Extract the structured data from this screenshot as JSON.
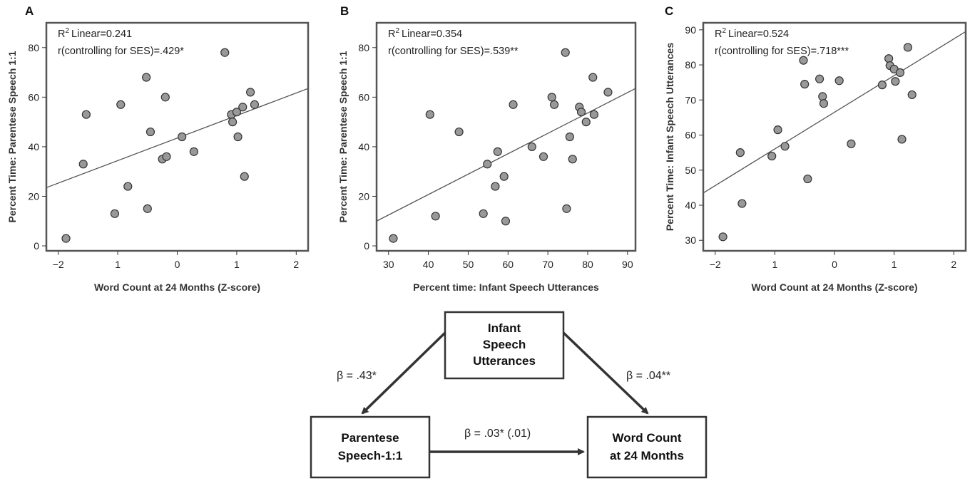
{
  "chart_data": [
    {
      "panel": "A",
      "type": "scatter",
      "xlabel": "Word Count at 24 Months (Z-score)",
      "ylabel": "Percent Time: Parentese Speech 1:1",
      "xlim": [
        -2.2,
        2.2
      ],
      "ylim": [
        -2,
        90
      ],
      "xticks": [
        -2,
        -1,
        0,
        1,
        2
      ],
      "xtick_labels": [
        "−2",
        "1",
        "0",
        "1",
        "2"
      ],
      "yticks": [
        0,
        20,
        40,
        60,
        80
      ],
      "annotations": [
        "Linear=0.241",
        "r(controlling for SES)=.429*"
      ],
      "annotation_prefix": "R",
      "annotation_sup": "2",
      "fit_line": {
        "x1": -2.2,
        "y1": 23.5,
        "x2": 2.2,
        "y2": 63.5
      },
      "points": [
        {
          "x": -1.87,
          "y": 3
        },
        {
          "x": -1.58,
          "y": 33
        },
        {
          "x": -1.53,
          "y": 53
        },
        {
          "x": -1.05,
          "y": 13
        },
        {
          "x": -0.95,
          "y": 57
        },
        {
          "x": -0.83,
          "y": 24
        },
        {
          "x": -0.52,
          "y": 68
        },
        {
          "x": -0.5,
          "y": 15
        },
        {
          "x": -0.45,
          "y": 46
        },
        {
          "x": -0.25,
          "y": 35
        },
        {
          "x": -0.2,
          "y": 60
        },
        {
          "x": -0.18,
          "y": 36
        },
        {
          "x": 0.08,
          "y": 44
        },
        {
          "x": 0.28,
          "y": 38
        },
        {
          "x": 0.8,
          "y": 78
        },
        {
          "x": 0.91,
          "y": 53
        },
        {
          "x": 0.93,
          "y": 50
        },
        {
          "x": 1.0,
          "y": 54
        },
        {
          "x": 1.02,
          "y": 44
        },
        {
          "x": 1.1,
          "y": 56
        },
        {
          "x": 1.13,
          "y": 28
        },
        {
          "x": 1.23,
          "y": 62
        },
        {
          "x": 1.3,
          "y": 57
        }
      ]
    },
    {
      "panel": "B",
      "type": "scatter",
      "xlabel": "Percent time: Infant Speech Utterances",
      "ylabel": "Percent Time: Parentese Speech 1:1",
      "xlim": [
        27,
        92
      ],
      "ylim": [
        -2,
        90
      ],
      "xticks": [
        30,
        40,
        50,
        60,
        70,
        80,
        90
      ],
      "xtick_labels": [
        "30",
        "40",
        "50",
        "60",
        "70",
        "80",
        "90"
      ],
      "yticks": [
        0,
        20,
        40,
        60,
        80
      ],
      "annotations": [
        "Linear=0.354",
        "r(controlling for SES)=.539**"
      ],
      "annotation_prefix": "R",
      "annotation_sup": "2",
      "fit_line": {
        "x1": 27,
        "y1": 10,
        "x2": 92,
        "y2": 63.5
      },
      "points": [
        {
          "x": 31.2,
          "y": 3
        },
        {
          "x": 40.4,
          "y": 53
        },
        {
          "x": 41.8,
          "y": 12
        },
        {
          "x": 47.7,
          "y": 46
        },
        {
          "x": 53.8,
          "y": 13
        },
        {
          "x": 54.8,
          "y": 33
        },
        {
          "x": 56.8,
          "y": 24
        },
        {
          "x": 57.4,
          "y": 38
        },
        {
          "x": 59.0,
          "y": 28
        },
        {
          "x": 59.4,
          "y": 10
        },
        {
          "x": 61.3,
          "y": 57
        },
        {
          "x": 66.0,
          "y": 40
        },
        {
          "x": 68.9,
          "y": 36
        },
        {
          "x": 71.0,
          "y": 60
        },
        {
          "x": 71.6,
          "y": 57
        },
        {
          "x": 74.4,
          "y": 78
        },
        {
          "x": 74.7,
          "y": 15
        },
        {
          "x": 75.5,
          "y": 44
        },
        {
          "x": 76.2,
          "y": 35
        },
        {
          "x": 77.9,
          "y": 56
        },
        {
          "x": 78.4,
          "y": 54
        },
        {
          "x": 79.6,
          "y": 50
        },
        {
          "x": 81.3,
          "y": 68
        },
        {
          "x": 81.6,
          "y": 53
        },
        {
          "x": 85.1,
          "y": 62
        }
      ]
    },
    {
      "panel": "C",
      "type": "scatter",
      "xlabel": "Word Count at 24 Months (Z-score)",
      "ylabel": "Percent Time: Infant Speech Utterances",
      "xlim": [
        -2.2,
        2.2
      ],
      "ylim": [
        27,
        92
      ],
      "xticks": [
        -2,
        -1,
        0,
        1,
        2
      ],
      "xtick_labels": [
        "−2",
        "1",
        "0",
        "1",
        "2"
      ],
      "yticks": [
        30,
        40,
        50,
        60,
        70,
        80,
        90
      ],
      "annotations": [
        "Linear=0.524",
        "r(controlling for SES)=.718***"
      ],
      "annotation_prefix": "R",
      "annotation_sup": "2",
      "fit_line": {
        "x1": -2.2,
        "y1": 43.5,
        "x2": 2.2,
        "y2": 89.5
      },
      "points": [
        {
          "x": -1.87,
          "y": 31
        },
        {
          "x": -1.58,
          "y": 55
        },
        {
          "x": -1.55,
          "y": 40.5
        },
        {
          "x": -1.05,
          "y": 54
        },
        {
          "x": -0.95,
          "y": 61.5
        },
        {
          "x": -0.83,
          "y": 56.8
        },
        {
          "x": -0.52,
          "y": 81.3
        },
        {
          "x": -0.5,
          "y": 74.5
        },
        {
          "x": -0.45,
          "y": 47.5
        },
        {
          "x": -0.25,
          "y": 76
        },
        {
          "x": -0.2,
          "y": 71
        },
        {
          "x": -0.18,
          "y": 69
        },
        {
          "x": 0.08,
          "y": 75.5
        },
        {
          "x": 0.28,
          "y": 57.5
        },
        {
          "x": 0.8,
          "y": 74.3
        },
        {
          "x": 0.91,
          "y": 81.8
        },
        {
          "x": 0.93,
          "y": 79.8
        },
        {
          "x": 1.0,
          "y": 78.8
        },
        {
          "x": 1.02,
          "y": 75.3
        },
        {
          "x": 1.1,
          "y": 77.8
        },
        {
          "x": 1.13,
          "y": 58.8
        },
        {
          "x": 1.23,
          "y": 85
        },
        {
          "x": 1.3,
          "y": 71.5
        }
      ]
    }
  ],
  "mediation": {
    "top_box": [
      "Infant",
      "Speech",
      "Utterances"
    ],
    "left_box": [
      "Parentese",
      "Speech-1:1"
    ],
    "right_box": [
      "Word Count",
      "at 24 Months"
    ],
    "left_path": "β = .43*",
    "right_path": "β = .04**",
    "bottom_path": "β = .03* (.01)"
  },
  "colors": {
    "point_fill": "#999999",
    "point_stroke": "#333333",
    "line": "#555555",
    "frame": "#555555",
    "arrow": "#333333"
  }
}
